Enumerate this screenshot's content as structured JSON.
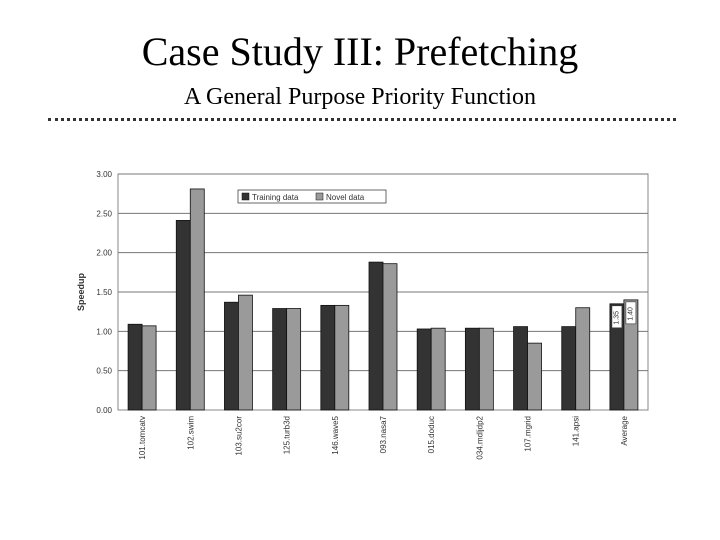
{
  "slide": {
    "title": "Case Study III: Prefetching",
    "subtitle": "A General Purpose Priority Function"
  },
  "chart_data": {
    "type": "bar",
    "ylabel": "Speedup",
    "ylim": [
      0,
      3
    ],
    "yticks": [
      "0.00",
      "0.50",
      "1.00",
      "1.50",
      "2.00",
      "2.50",
      "3.00"
    ],
    "grid": true,
    "legend_position": "top",
    "categories": [
      "101.tomcatv",
      "102.swim",
      "103.su2cor",
      "125.turb3d",
      "146.wave5",
      "093.nasa7",
      "015.doduc",
      "034.mdljdp2",
      "107.mgrid",
      "141.apsi",
      "Average"
    ],
    "series": [
      {
        "name": "Training data",
        "color": "#333333",
        "values": [
          1.09,
          2.41,
          1.37,
          1.29,
          1.33,
          1.88,
          1.03,
          1.04,
          1.06,
          1.06,
          1.35
        ]
      },
      {
        "name": "Novel data",
        "color": "#9a9a9a",
        "values": [
          1.07,
          2.81,
          1.46,
          1.29,
          1.33,
          1.86,
          1.04,
          1.04,
          0.85,
          1.3,
          1.4
        ]
      }
    ],
    "data_labels": {
      "category": "Average",
      "values": [
        "1.35",
        "1.40"
      ]
    }
  }
}
